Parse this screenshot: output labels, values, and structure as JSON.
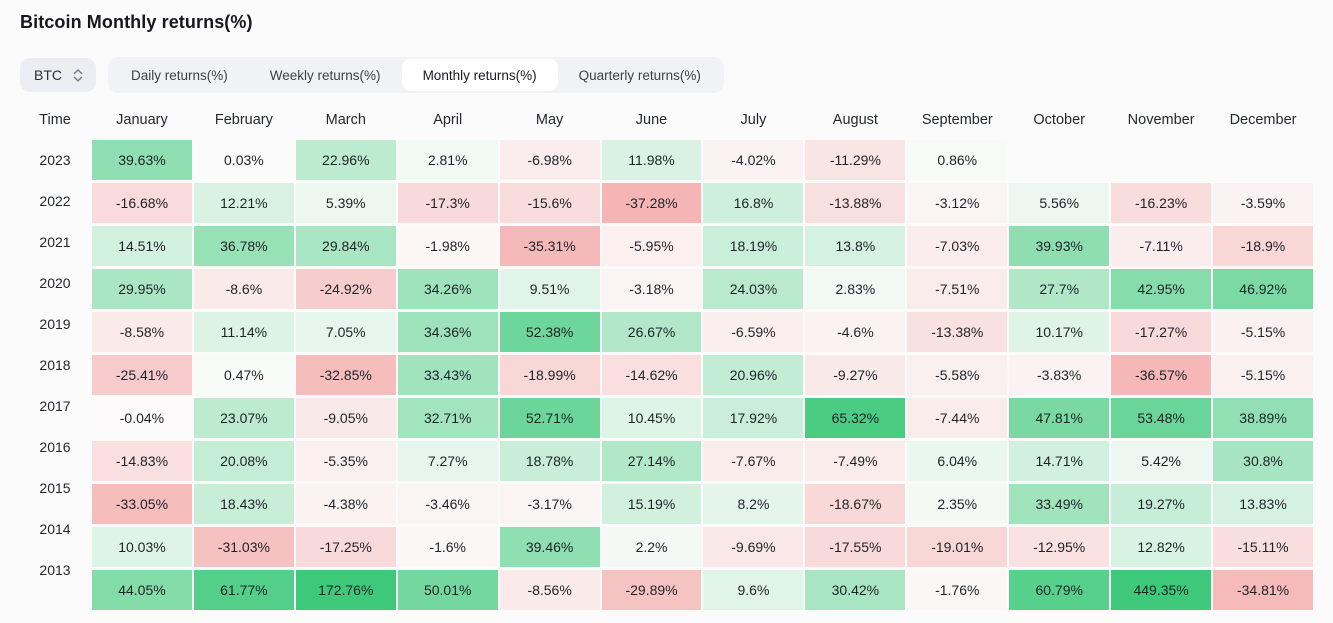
{
  "header": {
    "title": "Bitcoin Monthly returns(%)"
  },
  "controls": {
    "symbol_select": {
      "value": "BTC",
      "icon": "updown-chevron-icon"
    },
    "tabs": [
      {
        "label": "Daily returns(%)",
        "active": false
      },
      {
        "label": "Weekly returns(%)",
        "active": false
      },
      {
        "label": "Monthly returns(%)",
        "active": true
      },
      {
        "label": "Quarterly returns(%)",
        "active": false
      }
    ]
  },
  "chart_data": {
    "type": "heatmap",
    "title": "Bitcoin Monthly returns(%)",
    "unit": "%",
    "columns": [
      "Time",
      "January",
      "February",
      "March",
      "April",
      "May",
      "June",
      "July",
      "August",
      "September",
      "October",
      "November",
      "December"
    ],
    "rows": [
      {
        "year": "2023",
        "values": [
          "39.63%",
          "0.03%",
          "22.96%",
          "2.81%",
          "-6.98%",
          "11.98%",
          "-4.02%",
          "-11.29%",
          "0.86%",
          null,
          null,
          null
        ]
      },
      {
        "year": "2022",
        "values": [
          "-16.68%",
          "12.21%",
          "5.39%",
          "-17.3%",
          "-15.6%",
          "-37.28%",
          "16.8%",
          "-13.88%",
          "-3.12%",
          "5.56%",
          "-16.23%",
          "-3.59%"
        ]
      },
      {
        "year": "2021",
        "values": [
          "14.51%",
          "36.78%",
          "29.84%",
          "-1.98%",
          "-35.31%",
          "-5.95%",
          "18.19%",
          "13.8%",
          "-7.03%",
          "39.93%",
          "-7.11%",
          "-18.9%"
        ]
      },
      {
        "year": "2020",
        "values": [
          "29.95%",
          "-8.6%",
          "-24.92%",
          "34.26%",
          "9.51%",
          "-3.18%",
          "24.03%",
          "2.83%",
          "-7.51%",
          "27.7%",
          "42.95%",
          "46.92%"
        ]
      },
      {
        "year": "2019",
        "values": [
          "-8.58%",
          "11.14%",
          "7.05%",
          "34.36%",
          "52.38%",
          "26.67%",
          "-6.59%",
          "-4.6%",
          "-13.38%",
          "10.17%",
          "-17.27%",
          "-5.15%"
        ]
      },
      {
        "year": "2018",
        "values": [
          "-25.41%",
          "0.47%",
          "-32.85%",
          "33.43%",
          "-18.99%",
          "-14.62%",
          "20.96%",
          "-9.27%",
          "-5.58%",
          "-3.83%",
          "-36.57%",
          "-5.15%"
        ]
      },
      {
        "year": "2017",
        "values": [
          "-0.04%",
          "23.07%",
          "-9.05%",
          "32.71%",
          "52.71%",
          "10.45%",
          "17.92%",
          "65.32%",
          "-7.44%",
          "47.81%",
          "53.48%",
          "38.89%"
        ]
      },
      {
        "year": "2016",
        "values": [
          "-14.83%",
          "20.08%",
          "-5.35%",
          "7.27%",
          "18.78%",
          "27.14%",
          "-7.67%",
          "-7.49%",
          "6.04%",
          "14.71%",
          "5.42%",
          "30.8%"
        ]
      },
      {
        "year": "2015",
        "values": [
          "-33.05%",
          "18.43%",
          "-4.38%",
          "-3.46%",
          "-3.17%",
          "15.19%",
          "8.2%",
          "-18.67%",
          "2.35%",
          "33.49%",
          "19.27%",
          "13.83%"
        ]
      },
      {
        "year": "2014",
        "values": [
          "10.03%",
          "-31.03%",
          "-17.25%",
          "-1.6%",
          "39.46%",
          "2.2%",
          "-9.69%",
          "-17.55%",
          "-19.01%",
          "-12.95%",
          "12.82%",
          "-15.11%"
        ]
      },
      {
        "year": "2013",
        "values": [
          "44.05%",
          "61.77%",
          "172.76%",
          "50.01%",
          "-8.56%",
          "-29.89%",
          "9.6%",
          "30.42%",
          "-1.76%",
          "60.79%",
          "449.35%",
          "-34.81%"
        ]
      }
    ],
    "colors": {
      "positive_max": "#3ec97a",
      "negative_max": "#f5b4b4",
      "neutral": "#fbfbfb",
      "positive_scale_cap": 70,
      "negative_scale_cap": 38
    }
  }
}
